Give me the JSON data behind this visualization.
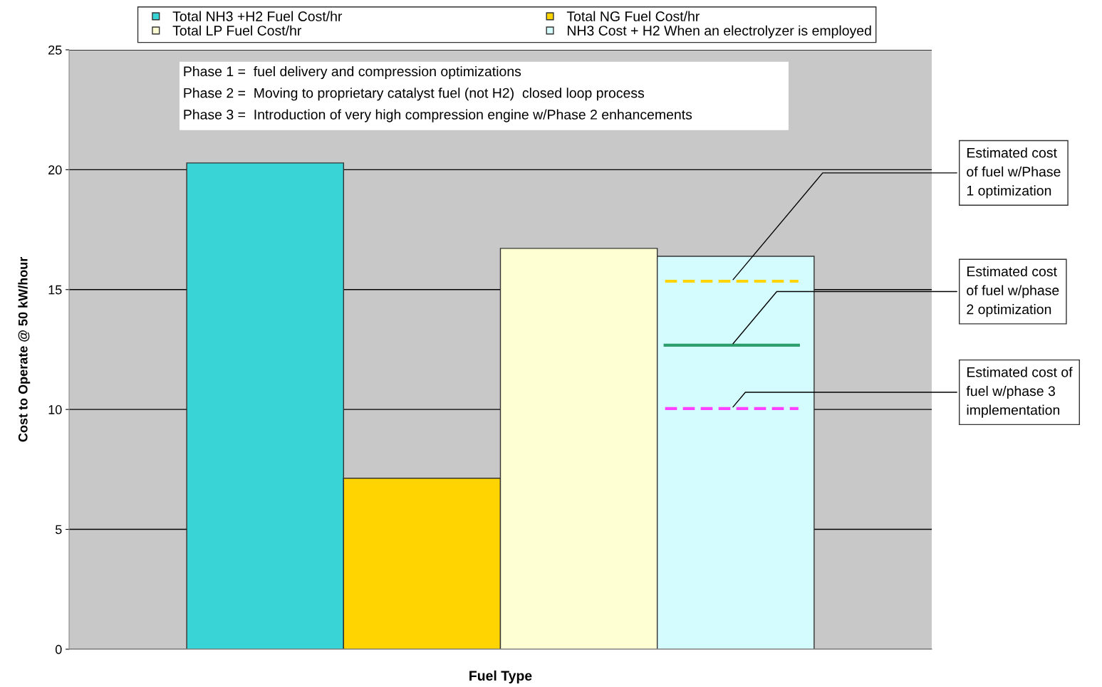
{
  "chart_data": {
    "type": "bar",
    "xlabel": "Fuel Type",
    "ylabel": "Cost to Operate @ 50 kW/hour",
    "categories": [
      null
    ],
    "series": [
      {
        "name": "Total NH3 +H2 Fuel Cost/hr",
        "color": "#38d4d6",
        "values": [
          20.28
        ]
      },
      {
        "name": "Total NG Fuel Cost/hr",
        "color": "#ffd400",
        "values": [
          7.13
        ]
      },
      {
        "name": "Total LP Fuel Cost/hr",
        "color": "#ffffd4",
        "values": [
          16.72
        ]
      },
      {
        "name": "NH3 Cost + H2 When an electrolyzer is employed",
        "color": "#d4fcff",
        "values": [
          16.39
        ]
      }
    ],
    "ylim": [
      0,
      25
    ],
    "yticks": [
      0,
      5,
      10,
      15,
      20,
      25
    ],
    "grid": "y",
    "legend": "top",
    "ref_lines": [
      {
        "axis": "y",
        "value": 15.35,
        "label": "Estimated cost\nof fuel w/Phase\n1 optimization",
        "color": "#ffd400",
        "line_style": "dashed"
      },
      {
        "axis": "y",
        "value": 12.68,
        "label": "Estimated cost\nof fuel w/phase\n2 optimization",
        "color": "#2e9e6e",
        "line_style": "solid"
      },
      {
        "axis": "y",
        "value": 10.04,
        "label": "Estimated cost of\nfuel w/phase 3\nimplementation",
        "color": "#ff40ff",
        "line_style": "dashed"
      }
    ],
    "annotations": [
      "Phase 1 =  fuel delivery and compression optimizations",
      "Phase 2 =  Moving to proprietary catalyst fuel (not H2)  closed loop process",
      "Phase 3 =  Introduction of very high compression engine w/Phase 2 enhancements"
    ]
  }
}
